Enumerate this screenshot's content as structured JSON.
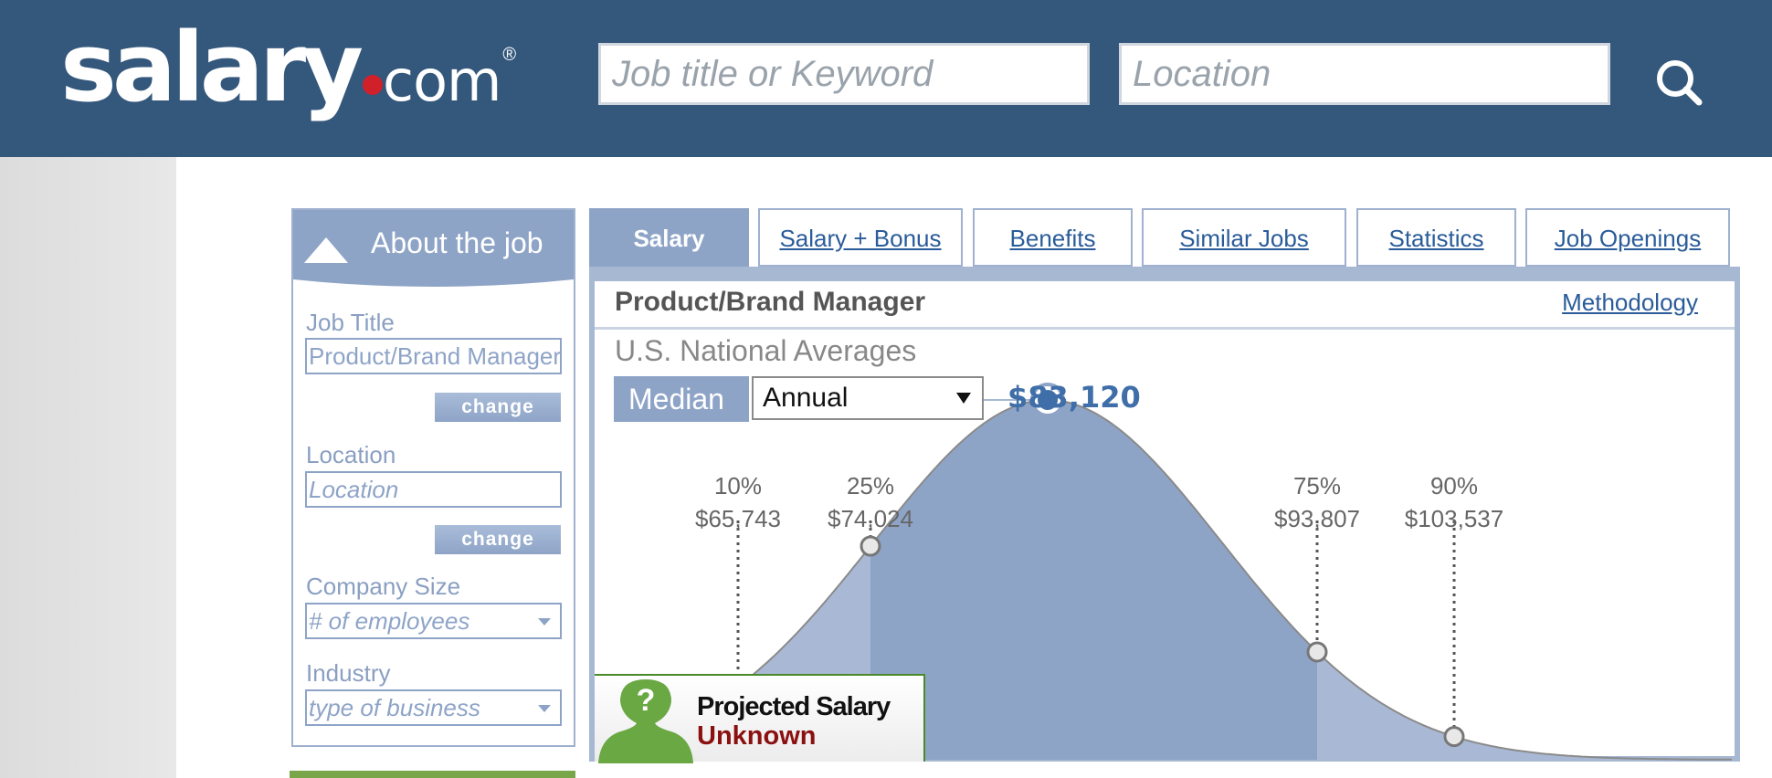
{
  "header": {
    "logo": {
      "main": "salary",
      "suffix": "com",
      "reg": "®"
    },
    "search": {
      "job_placeholder": "Job title or Keyword",
      "location_placeholder": "Location",
      "button_icon": "search-icon"
    }
  },
  "about": {
    "title": "About the job",
    "job_title_label": "Job Title",
    "job_title_value": "Product/Brand Manager",
    "change_label": "change",
    "location_label": "Location",
    "location_placeholder": "Location",
    "company_size_label": "Company Size",
    "company_size_placeholder": "# of employees",
    "industry_label": "Industry",
    "industry_placeholder": "type of business"
  },
  "tabs": [
    {
      "label": "Salary",
      "active": true
    },
    {
      "label": "Salary + Bonus"
    },
    {
      "label": "Benefits"
    },
    {
      "label": "Similar Jobs"
    },
    {
      "label": "Statistics"
    },
    {
      "label": "Job Openings"
    }
  ],
  "panel": {
    "job_title": "Product/Brand Manager",
    "methodology_label": "Methodology",
    "subtitle": "U.S. National Averages",
    "median_label": "Median",
    "period_value": "Annual",
    "median_value": "$83,120",
    "projected_line1": "Projected Salary",
    "projected_line2": "Unknown"
  },
  "colors": {
    "header_bg": "#34577c",
    "accent": "#8ea4c7",
    "link": "#2a5c99",
    "median_text": "#3f6ea8"
  },
  "chart_data": {
    "type": "area",
    "percentiles": [
      {
        "pct": "10%",
        "value": "$65,743",
        "amount": 65743
      },
      {
        "pct": "25%",
        "value": "$74,024",
        "amount": 74024
      },
      {
        "pct": "50%",
        "value": "$83,120",
        "amount": 83120
      },
      {
        "pct": "75%",
        "value": "$93,807",
        "amount": 93807
      },
      {
        "pct": "90%",
        "value": "$103,537",
        "amount": 103537
      }
    ]
  }
}
